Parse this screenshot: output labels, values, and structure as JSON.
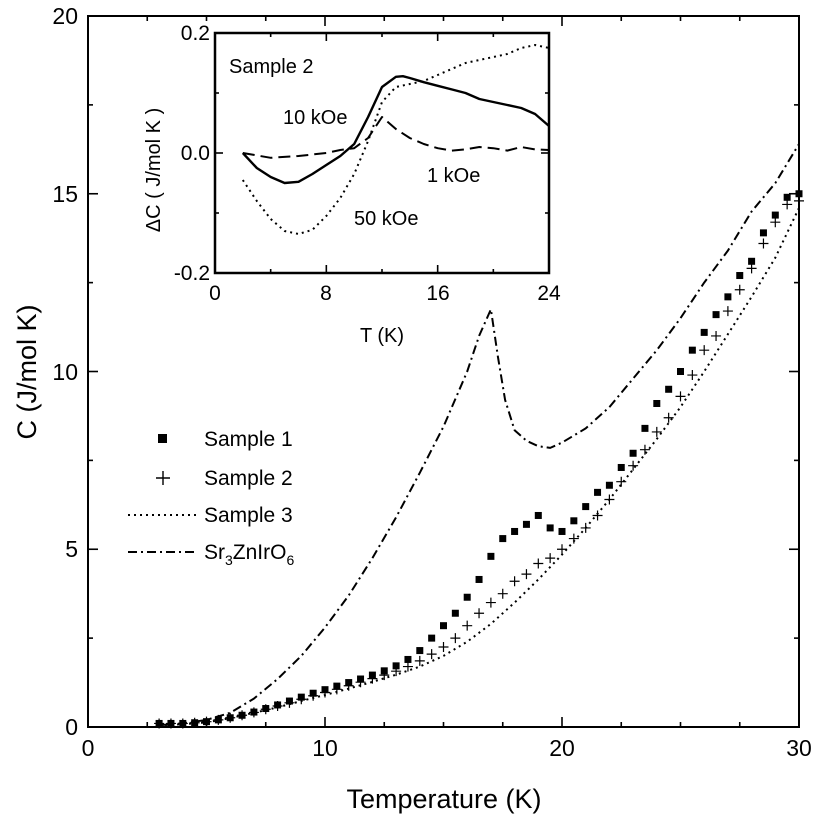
{
  "chart_data": [
    {
      "type": "scatter",
      "xlabel": "Temperature (K)",
      "ylabel": "C (J/mol K)",
      "xlim": [
        0,
        30
      ],
      "ylim": [
        0,
        20
      ],
      "xticks": [
        "0",
        "10",
        "20",
        "30"
      ],
      "yticks": [
        "0",
        "5",
        "10",
        "15",
        "20"
      ],
      "legend": {
        "placement": "center-left",
        "entries": [
          {
            "name": "Sample 1",
            "marker": "square"
          },
          {
            "name": "Sample 2",
            "marker": "plus"
          },
          {
            "name": "Sample 3",
            "marker": "dotted-line"
          },
          {
            "name": "Sr3ZnIrO6",
            "marker": "dash-dot-line",
            "label_parts": [
              "Sr",
              "3",
              "ZnIr",
              "O",
              "6"
            ]
          }
        ]
      },
      "series": [
        {
          "name": "Sample 1",
          "style": "square",
          "x": [
            3,
            3.5,
            4,
            4.5,
            5,
            5.5,
            6,
            6.5,
            7,
            7.5,
            8,
            8.5,
            9,
            9.5,
            10,
            10.5,
            11,
            11.5,
            12,
            12.5,
            13,
            13.5,
            14,
            14.5,
            15,
            15.5,
            16,
            16.5,
            17,
            17.5,
            18,
            18.5,
            19,
            19.5,
            20,
            20.5,
            21,
            21.5,
            22,
            22.5,
            23,
            23.5,
            24,
            24.5,
            25,
            25.5,
            26,
            26.5,
            27,
            27.5,
            28,
            28.5,
            29,
            29.5,
            30
          ],
          "y": [
            0.1,
            0.1,
            0.1,
            0.12,
            0.15,
            0.2,
            0.26,
            0.33,
            0.42,
            0.52,
            0.62,
            0.73,
            0.84,
            0.95,
            1.05,
            1.15,
            1.25,
            1.35,
            1.46,
            1.58,
            1.72,
            1.9,
            2.15,
            2.5,
            2.85,
            3.2,
            3.65,
            4.15,
            4.8,
            5.3,
            5.5,
            5.7,
            5.95,
            5.6,
            5.5,
            5.8,
            6.2,
            6.6,
            6.8,
            7.3,
            7.7,
            8.4,
            9.1,
            9.5,
            10.0,
            10.6,
            11.1,
            11.6,
            12.1,
            12.7,
            13.1,
            13.9,
            14.4,
            14.9,
            15.0
          ]
        },
        {
          "name": "Sample 2",
          "style": "plus",
          "x": [
            3,
            3.5,
            4,
            4.5,
            5,
            5.5,
            6,
            6.5,
            7,
            7.5,
            8,
            8.5,
            9,
            9.5,
            10,
            10.5,
            11,
            11.5,
            12,
            12.5,
            13,
            13.5,
            14,
            14.5,
            15,
            15.5,
            16,
            16.5,
            17,
            17.5,
            18,
            18.5,
            19,
            19.5,
            20,
            20.5,
            21,
            21.5,
            22,
            22.5,
            23,
            23.5,
            24,
            24.5,
            25,
            25.5,
            26,
            26.5,
            27,
            27.5,
            28,
            28.5,
            29,
            29.5,
            30
          ],
          "y": [
            0.1,
            0.1,
            0.1,
            0.12,
            0.15,
            0.2,
            0.26,
            0.33,
            0.41,
            0.5,
            0.59,
            0.68,
            0.78,
            0.88,
            0.97,
            1.06,
            1.16,
            1.26,
            1.36,
            1.46,
            1.57,
            1.7,
            1.86,
            2.05,
            2.25,
            2.5,
            2.85,
            3.2,
            3.5,
            3.75,
            4.1,
            4.3,
            4.6,
            4.75,
            5.0,
            5.3,
            5.6,
            5.95,
            6.4,
            6.9,
            7.35,
            7.8,
            8.3,
            8.7,
            9.3,
            9.9,
            10.6,
            11.0,
            11.7,
            12.3,
            12.9,
            13.6,
            14.2,
            14.7,
            14.8
          ]
        },
        {
          "name": "Sample 3",
          "style": "dotted",
          "x": [
            3,
            4,
            5,
            6,
            7,
            8,
            9,
            10,
            11,
            12,
            13,
            14,
            15,
            16,
            17,
            18,
            19,
            20,
            21,
            22,
            23,
            24,
            25,
            26,
            27,
            28,
            29,
            30
          ],
          "y": [
            0.05,
            0.08,
            0.13,
            0.25,
            0.4,
            0.55,
            0.73,
            0.9,
            1.08,
            1.27,
            1.47,
            1.7,
            2.0,
            2.4,
            2.9,
            3.5,
            4.15,
            4.85,
            5.6,
            6.4,
            7.25,
            8.1,
            9.0,
            10.0,
            11.05,
            12.1,
            13.2,
            14.6
          ]
        },
        {
          "name": "Sr3ZnIrO6",
          "style": "dash-dot",
          "x": [
            3,
            4,
            5,
            6,
            7,
            8,
            9,
            10,
            11,
            12,
            13,
            14,
            15,
            16,
            16.5,
            17,
            17.3,
            17.6,
            18,
            18.5,
            19,
            19.5,
            20,
            21,
            22,
            23,
            24,
            25,
            26,
            27,
            28,
            29,
            30
          ],
          "y": [
            0.05,
            0.1,
            0.2,
            0.4,
            0.8,
            1.35,
            2.0,
            2.8,
            3.7,
            4.75,
            5.9,
            7.15,
            8.45,
            10.0,
            11.0,
            11.75,
            10.4,
            9.2,
            8.35,
            8.05,
            7.9,
            7.85,
            8.0,
            8.4,
            9.0,
            9.8,
            10.6,
            11.5,
            12.5,
            13.4,
            14.5,
            15.3,
            16.4
          ]
        }
      ]
    },
    {
      "type": "line",
      "title": "Sample 2",
      "xlabel": "T (K)",
      "ylabel": "ΔC  ( J/mol K )",
      "xlim": [
        0,
        24
      ],
      "ylim": [
        -0.2,
        0.2
      ],
      "xticks": [
        "0",
        "8",
        "16",
        "24"
      ],
      "yticks": [
        "-0.2",
        "0.0",
        "0.2"
      ],
      "annotations": [
        "10 kOe",
        "1 kOe",
        "50 kOe"
      ],
      "series": [
        {
          "name": "10 kOe",
          "style": "solid",
          "x": [
            2,
            3,
            4,
            5,
            6,
            7,
            8,
            9,
            10,
            11,
            12,
            13,
            13.5,
            14,
            15,
            16,
            17,
            18,
            19,
            20,
            21,
            22,
            23,
            24
          ],
          "y": [
            0.0,
            -0.025,
            -0.04,
            -0.05,
            -0.048,
            -0.035,
            -0.02,
            -0.005,
            0.015,
            0.06,
            0.11,
            0.127,
            0.128,
            0.125,
            0.118,
            0.112,
            0.106,
            0.1,
            0.09,
            0.085,
            0.08,
            0.075,
            0.065,
            0.045
          ]
        },
        {
          "name": "1 kOe",
          "style": "dashed",
          "x": [
            2,
            4,
            6,
            8,
            9,
            10,
            11,
            12,
            13,
            14,
            15,
            16,
            17,
            18,
            19,
            20,
            21,
            22,
            23,
            24
          ],
          "y": [
            0.0,
            -0.008,
            -0.005,
            0.0,
            0.005,
            0.008,
            0.025,
            0.06,
            0.04,
            0.025,
            0.015,
            0.008,
            0.004,
            0.006,
            0.01,
            0.008,
            0.004,
            0.01,
            0.006,
            0.005
          ]
        },
        {
          "name": "50 kOe",
          "style": "dotted",
          "x": [
            2,
            3,
            4,
            5,
            6,
            7,
            8,
            9,
            10,
            11,
            12,
            13,
            14,
            15,
            16,
            17,
            18,
            19,
            20,
            21,
            22,
            23,
            24
          ],
          "y": [
            -0.045,
            -0.08,
            -0.11,
            -0.13,
            -0.135,
            -0.128,
            -0.105,
            -0.075,
            -0.035,
            0.02,
            0.085,
            0.11,
            0.115,
            0.12,
            0.13,
            0.14,
            0.15,
            0.155,
            0.16,
            0.165,
            0.175,
            0.18,
            0.175
          ]
        }
      ]
    }
  ]
}
